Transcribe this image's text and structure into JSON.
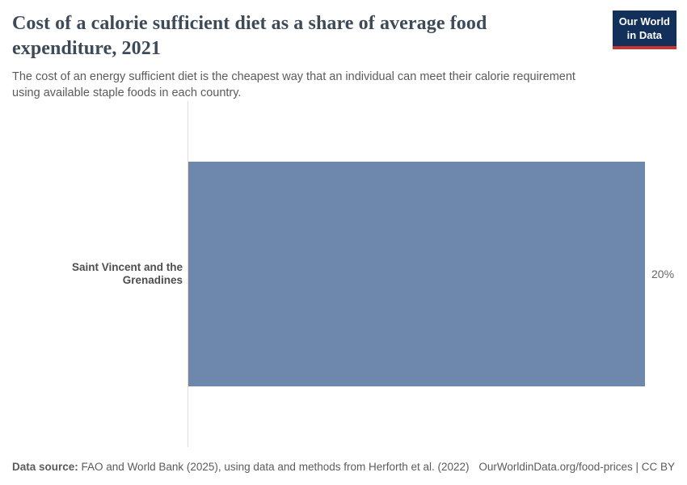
{
  "header": {
    "title": "Cost of a calorie sufficient diet as a share of average food expenditure, 2021",
    "subtitle": "The cost of an energy sufficient diet is the cheapest way that an individual can meet their calorie requirement using available staple foods in each country.",
    "logo": {
      "line1": "Our World",
      "line2": "in Data",
      "bg_color": "#12305a",
      "stripe_color": "#c4372f"
    }
  },
  "chart_data": {
    "type": "bar",
    "orientation": "horizontal",
    "title": "Cost of a calorie sufficient diet as a share of average food expenditure, 2021",
    "categories": [
      "Saint Vincent and the Grenadines"
    ],
    "values": [
      20
    ],
    "value_labels": [
      "20%"
    ],
    "xlabel": "",
    "ylabel": "",
    "xlim": [
      0,
      20
    ],
    "grid": false,
    "legend": "none",
    "bar_color": "#6e87ad",
    "axis_line_color": "#dcdcdc"
  },
  "footer": {
    "data_source_label": "Data source:",
    "data_source_text": " FAO and World Bank (2025), using data and methods from Herforth et al. (2022)",
    "attribution": "OurWorldinData.org/food-prices | CC BY"
  }
}
